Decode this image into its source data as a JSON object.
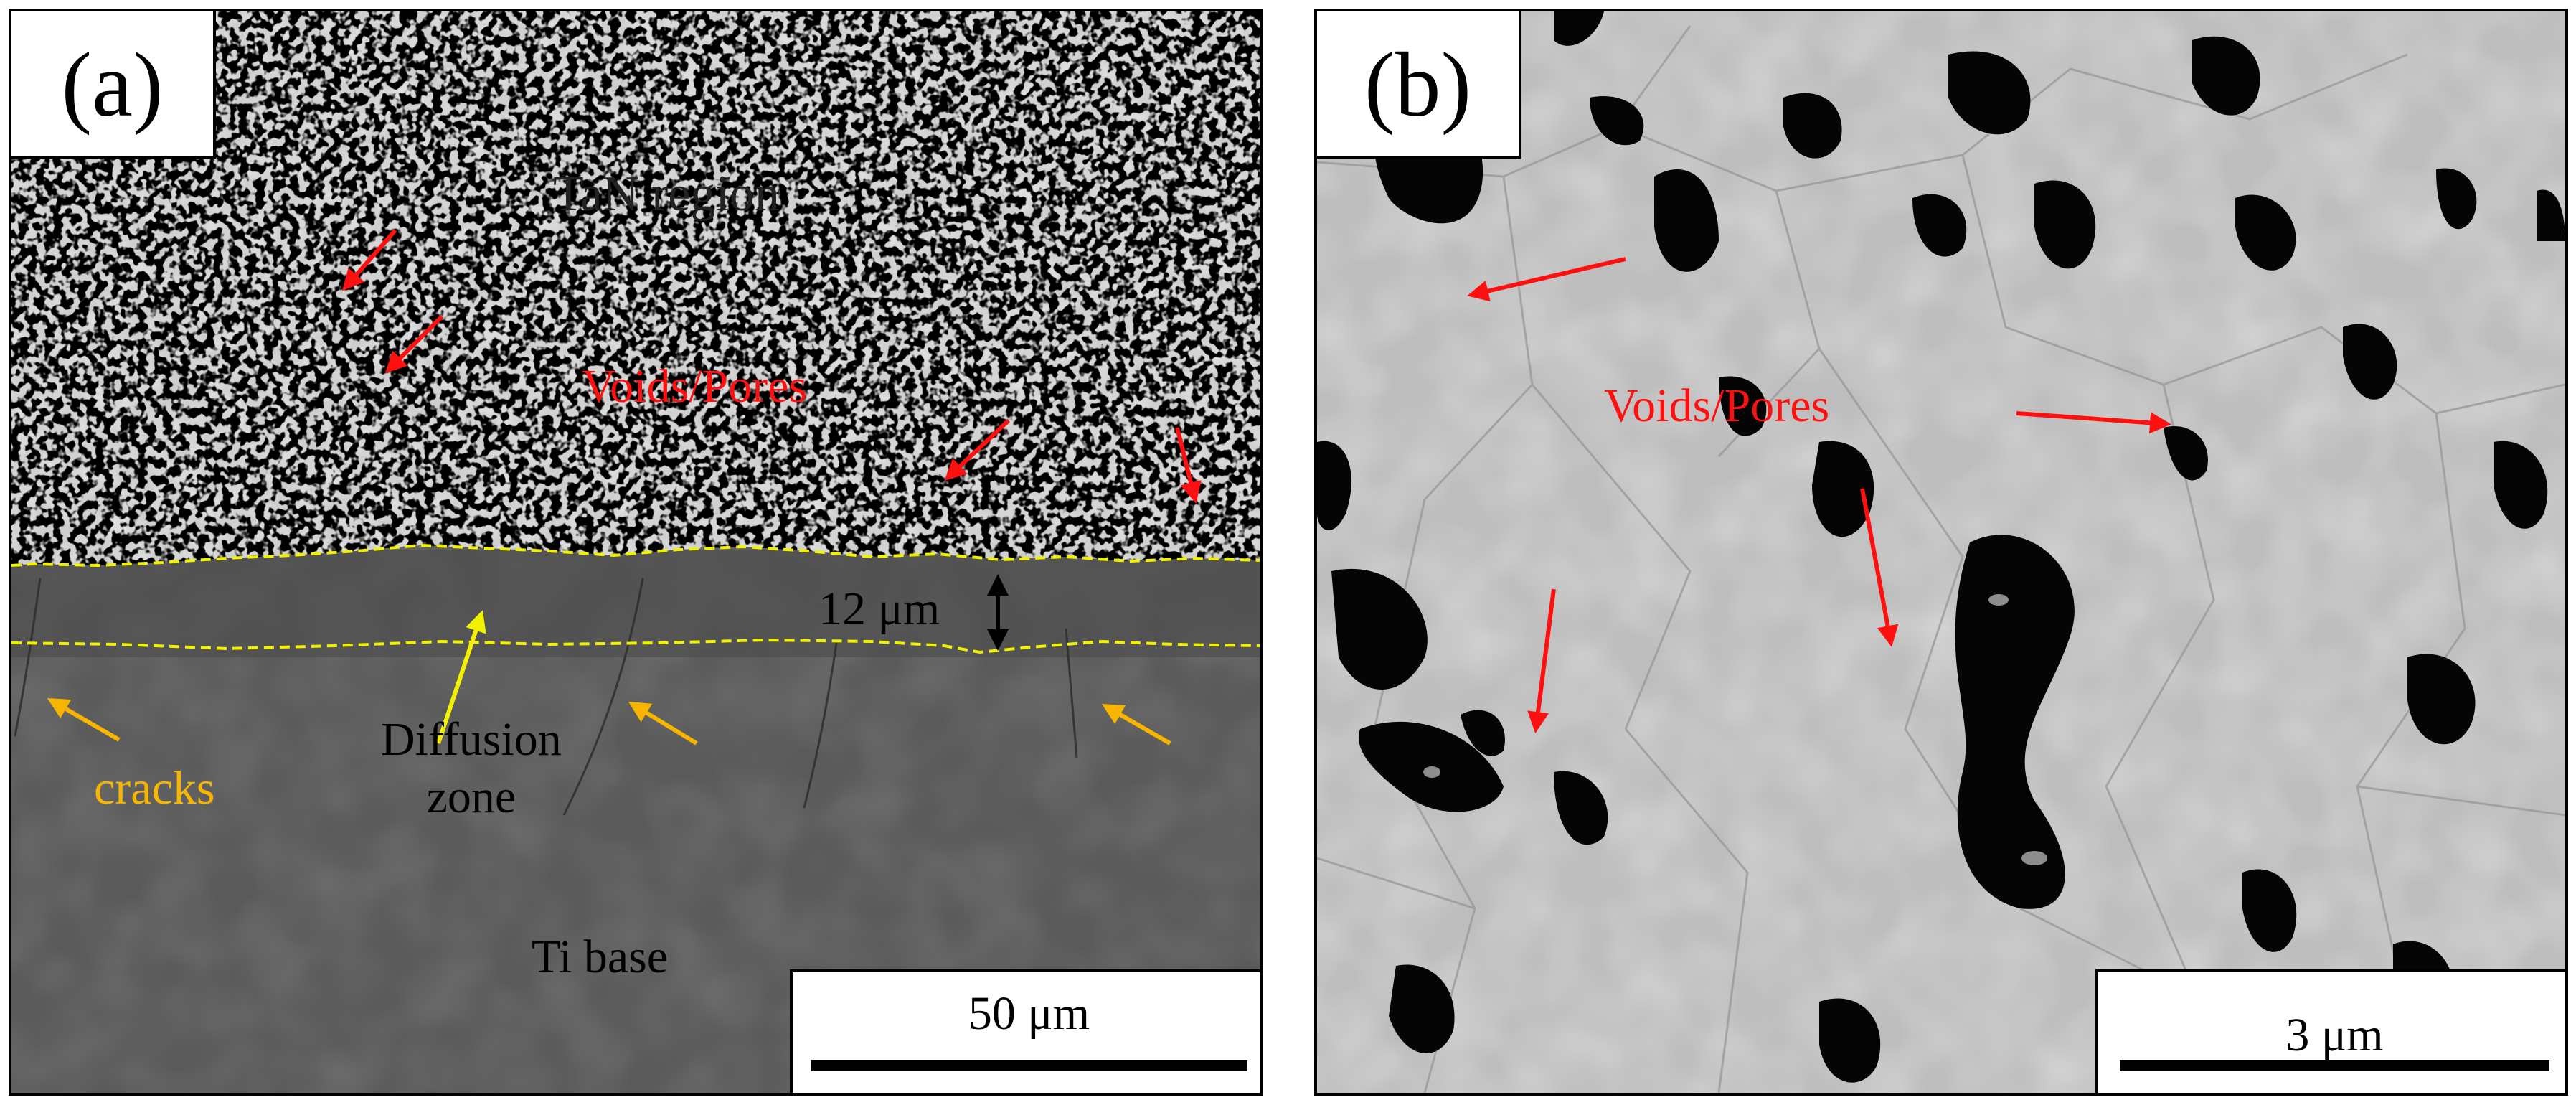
{
  "panel_a": {
    "label": "(a)",
    "tan_region": "TaN region",
    "voids_pores": "Voids/Pores",
    "thickness": "12 μm",
    "diffusion_zone_line1": "Diffusion",
    "diffusion_zone_line2": "zone",
    "cracks": "cracks",
    "ti_base": "Ti base",
    "scale_bar": "50 μm"
  },
  "panel_b": {
    "label": "(b)",
    "voids_pores": "Voids/Pores",
    "scale_bar": "3 μm"
  },
  "colors": {
    "annotation_red": "#ff1010",
    "diffusion_line_yellow": "#f2f200",
    "cracks_orange": "#f7b500",
    "ti_base_gray": "#5a5a5a",
    "tan_light_gray": "#c9c9c9",
    "pore_black": "#050505"
  }
}
